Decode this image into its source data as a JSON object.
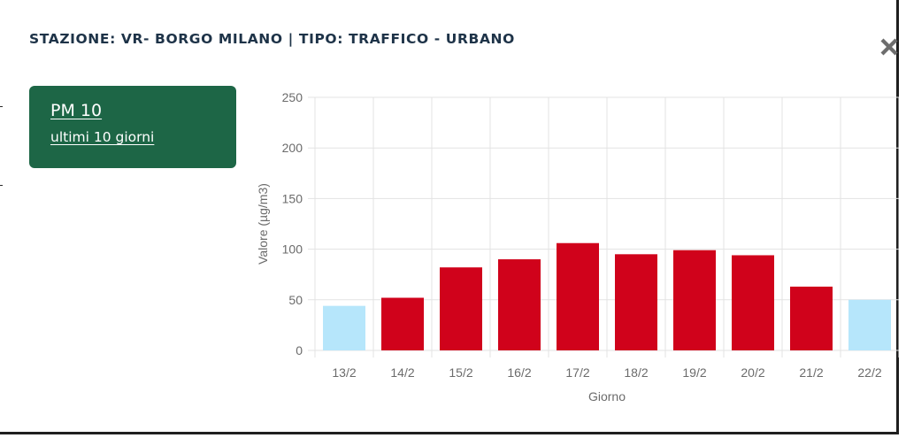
{
  "header": {
    "title": "STAZIONE: VR- BORGO MILANO | TIPO: TRAFFICO - URBANO",
    "close_icon": "close-icon"
  },
  "pollutant_card": {
    "pollutant": "PM 10",
    "period": "ultimi 10 giorni",
    "background_color": "#1d6646"
  },
  "chart_data": {
    "type": "bar",
    "categories": [
      "13/2",
      "14/2",
      "15/2",
      "16/2",
      "17/2",
      "18/2",
      "19/2",
      "20/2",
      "21/2",
      "22/2"
    ],
    "values": [
      44,
      52,
      82,
      90,
      106,
      95,
      99,
      94,
      63,
      50
    ],
    "xlabel": "Giorno",
    "ylabel": "Valore (µg/m3)",
    "ylim": [
      0,
      250
    ],
    "yticks": [
      0,
      50,
      100,
      150,
      200,
      250
    ],
    "grid": true,
    "legend": "none",
    "colors": {
      "exceeding": "#d0021b",
      "within_limit": "#b6e6fb"
    },
    "bar_status": [
      "within_limit",
      "exceeding",
      "exceeding",
      "exceeding",
      "exceeding",
      "exceeding",
      "exceeding",
      "exceeding",
      "exceeding",
      "within_limit"
    ]
  }
}
